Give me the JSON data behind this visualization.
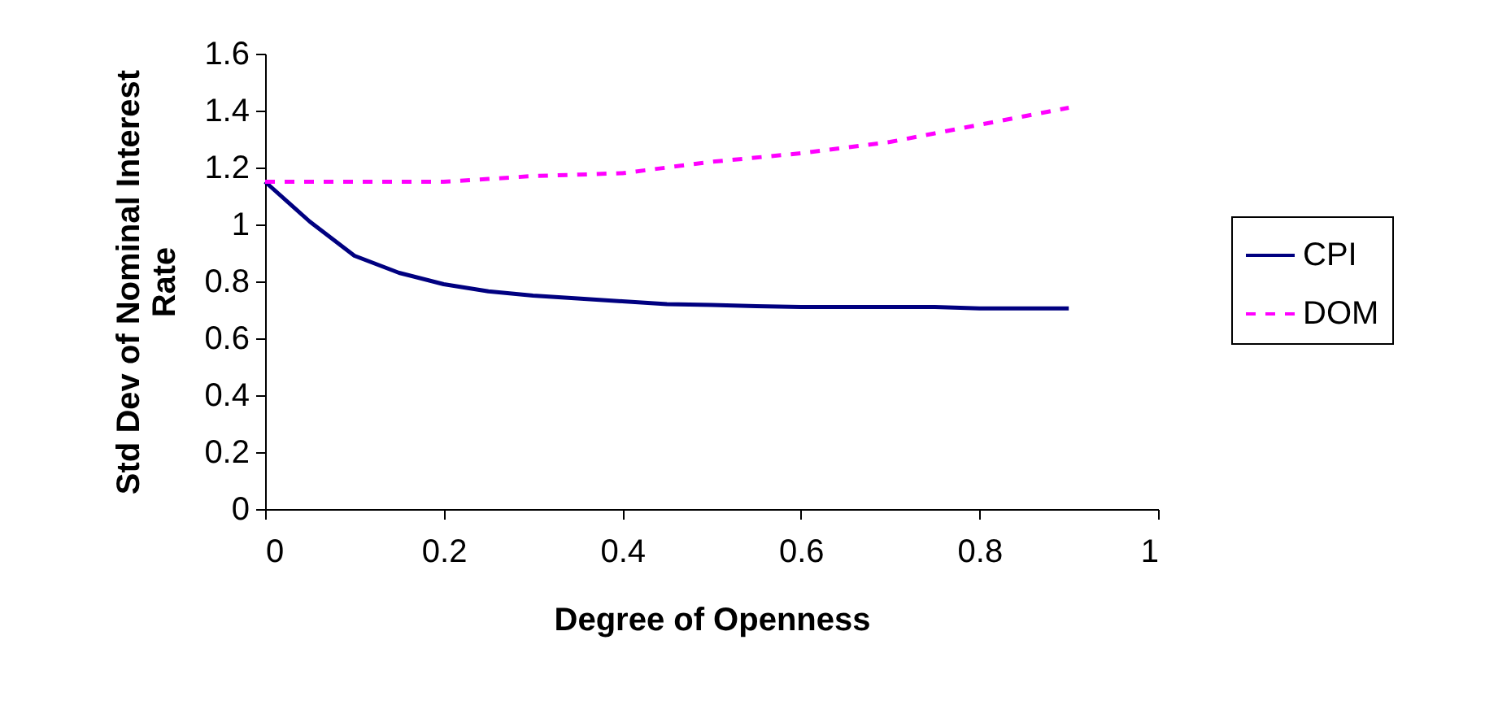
{
  "chart_data": {
    "type": "line",
    "xlabel": "Degree of Openness",
    "ylabel": "Std Dev of Nominal Interest Rate",
    "x": [
      0,
      0.05,
      0.1,
      0.15,
      0.2,
      0.25,
      0.3,
      0.35,
      0.4,
      0.45,
      0.5,
      0.55,
      0.6,
      0.65,
      0.7,
      0.75,
      0.8,
      0.85,
      0.9
    ],
    "series": [
      {
        "name": "CPI",
        "color": "#000080",
        "line_style": "solid",
        "values": [
          1.15,
          1.01,
          0.89,
          0.83,
          0.79,
          0.765,
          0.75,
          0.74,
          0.73,
          0.72,
          0.717,
          0.713,
          0.71,
          0.71,
          0.71,
          0.71,
          0.705,
          0.705,
          0.705
        ]
      },
      {
        "name": "DOM",
        "color": "#ff00ff",
        "line_style": "dashed",
        "values": [
          1.15,
          1.15,
          1.15,
          1.15,
          1.15,
          1.16,
          1.17,
          1.175,
          1.18,
          1.2,
          1.22,
          1.235,
          1.25,
          1.27,
          1.29,
          1.32,
          1.35,
          1.38,
          1.41
        ]
      }
    ],
    "xlim": [
      0,
      1
    ],
    "xticks": [
      0,
      0.2,
      0.4,
      0.6,
      0.8,
      1
    ],
    "ylim": [
      0,
      1.6
    ],
    "yticks": [
      0,
      0.2,
      0.4,
      0.6,
      0.8,
      1,
      1.2,
      1.4,
      1.6
    ],
    "grid": false,
    "legend": "right",
    "marker": "none"
  }
}
